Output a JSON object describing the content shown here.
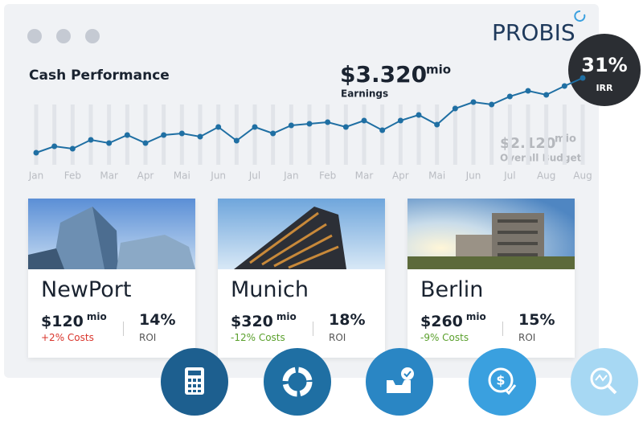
{
  "header": {
    "brand": "PROBIS"
  },
  "chart_data": {
    "type": "line",
    "title": "Cash Performance",
    "categories": [
      "Jan",
      null,
      "Feb",
      null,
      "Mar",
      null,
      "Apr",
      null,
      "Mai",
      null,
      "Jun",
      null,
      "Jul",
      null,
      "Jan",
      null,
      "Feb",
      null,
      "Mar",
      null,
      "Apr",
      null,
      "Mai",
      null,
      "Jun",
      null,
      "Jul",
      null,
      "Aug",
      null,
      "Aug"
    ],
    "values": [
      10,
      18,
      15,
      26,
      22,
      32,
      22,
      32,
      34,
      30,
      42,
      25,
      42,
      34,
      44,
      46,
      48,
      42,
      50,
      38,
      50,
      57,
      45,
      65,
      73,
      70,
      80,
      87,
      82,
      93,
      103
    ],
    "color": "#1f6fa3",
    "ylim": [
      0,
      110
    ]
  },
  "earnings": {
    "value": "$3.320",
    "unit": "mio",
    "label": "Earnings"
  },
  "budget": {
    "value": "$2.120",
    "unit": "mio",
    "label": "Overall Budget"
  },
  "irr": {
    "value": "31%",
    "label": "IRR"
  },
  "properties": [
    {
      "name": "NewPort",
      "amount": "$120",
      "unit": "mio",
      "costs": "+2% Costs",
      "roi": "14%",
      "roi_label": "ROI"
    },
    {
      "name": "Munich",
      "amount": "$320",
      "unit": "mio",
      "costs": "-12% Costs",
      "roi": "18%",
      "roi_label": "ROI"
    },
    {
      "name": "Berlin",
      "amount": "$260",
      "unit": "mio",
      "costs": "-9% Costs",
      "roi": "15%",
      "roi_label": "ROI"
    }
  ]
}
